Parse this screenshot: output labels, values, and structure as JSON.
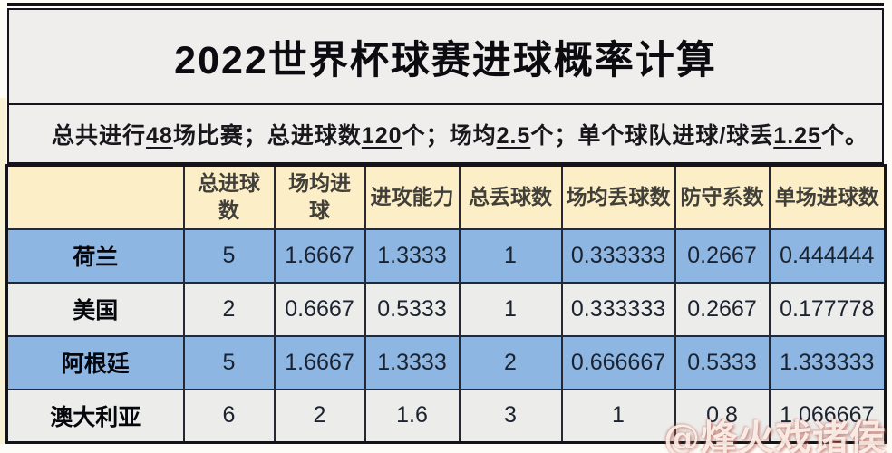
{
  "chart_data": {
    "type": "table",
    "title": "2022世界杯球赛进球概率计算",
    "columns": [
      "",
      "总进球数",
      "场均进球",
      "进攻能力",
      "总丢球数",
      "场均丢球数",
      "防守系数",
      "单场进球数"
    ],
    "rows": [
      [
        "荷兰",
        "5",
        "1.6667",
        "1.3333",
        "1",
        "0.333333",
        "0.2667",
        "0.444444"
      ],
      [
        "美国",
        "2",
        "0.6667",
        "0.5333",
        "1",
        "0.333333",
        "0.2667",
        "0.177778"
      ],
      [
        "阿根廷",
        "5",
        "1.6667",
        "1.3333",
        "2",
        "0.666667",
        "0.5333",
        "1.333333"
      ],
      [
        "澳大利亚",
        "6",
        "2",
        "1.6",
        "3",
        "1",
        "0.8",
        "1.066667"
      ]
    ],
    "layout_hints": {
      "header_background": "#fceec6",
      "odd_row_background": "#8db6e2",
      "even_row_background": "#ececea",
      "grid": "on"
    }
  },
  "summary": {
    "segments": [
      {
        "text": "总共进行"
      },
      {
        "text": "48",
        "emphasis": true
      },
      {
        "text": "场比赛；总进球数"
      },
      {
        "text": "120",
        "emphasis": true
      },
      {
        "text": "个；场均"
      },
      {
        "text": "2.5",
        "emphasis": true
      },
      {
        "text": "个；单个球队进球/球丢"
      },
      {
        "text": "1.25",
        "emphasis": true
      },
      {
        "text": "个。"
      }
    ]
  },
  "watermark": "@烽火戏诸侯",
  "colors": {
    "banner_background": "#efeeec",
    "border": "#15161d",
    "header_background": "#fceec6",
    "row_blue": "#8db6e2",
    "row_gray": "#ececea",
    "watermark_tint": "#b25448"
  }
}
